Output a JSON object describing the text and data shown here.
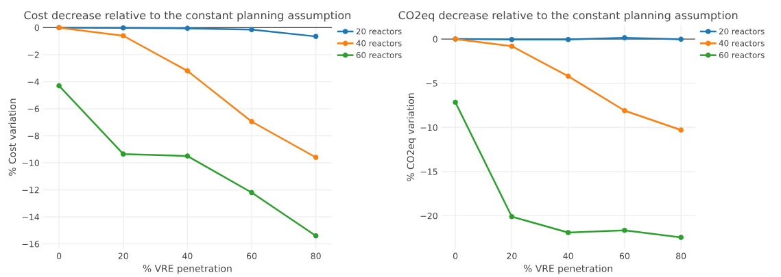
{
  "chart_data": [
    {
      "type": "line",
      "title": "Cost decrease relative to the constant planning assumption",
      "xlabel": "% VRE penetration",
      "ylabel": "% Cost variation",
      "x": [
        0,
        20,
        40,
        60,
        80
      ],
      "series": [
        {
          "name": "20 reactors",
          "color": "#1f77b4",
          "values": [
            0,
            -0.02,
            -0.05,
            -0.15,
            -0.65
          ]
        },
        {
          "name": "40 reactors",
          "color": "#ff7f0e",
          "values": [
            0,
            -0.6,
            -3.2,
            -6.95,
            -9.6
          ]
        },
        {
          "name": "60 reactors",
          "color": "#2ca02c",
          "values": [
            -4.3,
            -9.35,
            -9.5,
            -12.2,
            -15.4
          ]
        }
      ],
      "xlim": [
        -5,
        85
      ],
      "ylim": [
        -16.4,
        0.2
      ],
      "xticks": [
        0,
        20,
        40,
        60,
        80
      ],
      "yticks": [
        {
          "value": -16,
          "label": "−16"
        },
        {
          "value": -14,
          "label": "−14"
        },
        {
          "value": -12,
          "label": "−12"
        },
        {
          "value": -10,
          "label": "−10"
        },
        {
          "value": -8,
          "label": "−8"
        },
        {
          "value": -6,
          "label": "−6"
        },
        {
          "value": -4,
          "label": "−4"
        },
        {
          "value": -2,
          "label": "−2"
        },
        0
      ],
      "ref_lines": [
        {
          "axis": "y",
          "value": 0,
          "color": "#444444"
        }
      ],
      "grid": true,
      "legend": "top right",
      "marker": "circle",
      "line_style": "solid"
    },
    {
      "type": "line",
      "title": "CO2eq decrease relative to the constant planning assumption",
      "xlabel": "% VRE penetration",
      "ylabel": "% CO2eq variation",
      "x": [
        0,
        20,
        40,
        60,
        80
      ],
      "series": [
        {
          "name": "20 reactors",
          "color": "#1f77b4",
          "values": [
            0,
            -0.05,
            -0.05,
            0.15,
            -0.02
          ]
        },
        {
          "name": "40 reactors",
          "color": "#ff7f0e",
          "values": [
            0,
            -0.8,
            -4.2,
            -8.1,
            -10.3
          ]
        },
        {
          "name": "60 reactors",
          "color": "#2ca02c",
          "values": [
            -7.15,
            -20.1,
            -21.9,
            -21.65,
            -22.45
          ]
        }
      ],
      "xlim": [
        -5,
        85
      ],
      "ylim": [
        -23.8,
        1.6
      ],
      "xticks": [
        0,
        20,
        40,
        60,
        80
      ],
      "yticks": [
        {
          "value": -20,
          "label": "−20"
        },
        {
          "value": -15,
          "label": "−15"
        },
        {
          "value": -10,
          "label": "−10"
        },
        {
          "value": -5,
          "label": "−5"
        },
        0
      ],
      "ref_lines": [
        {
          "axis": "y",
          "value": 0,
          "color": "#444444"
        }
      ],
      "grid": true,
      "legend": "top right",
      "marker": "circle",
      "line_style": "solid"
    }
  ]
}
